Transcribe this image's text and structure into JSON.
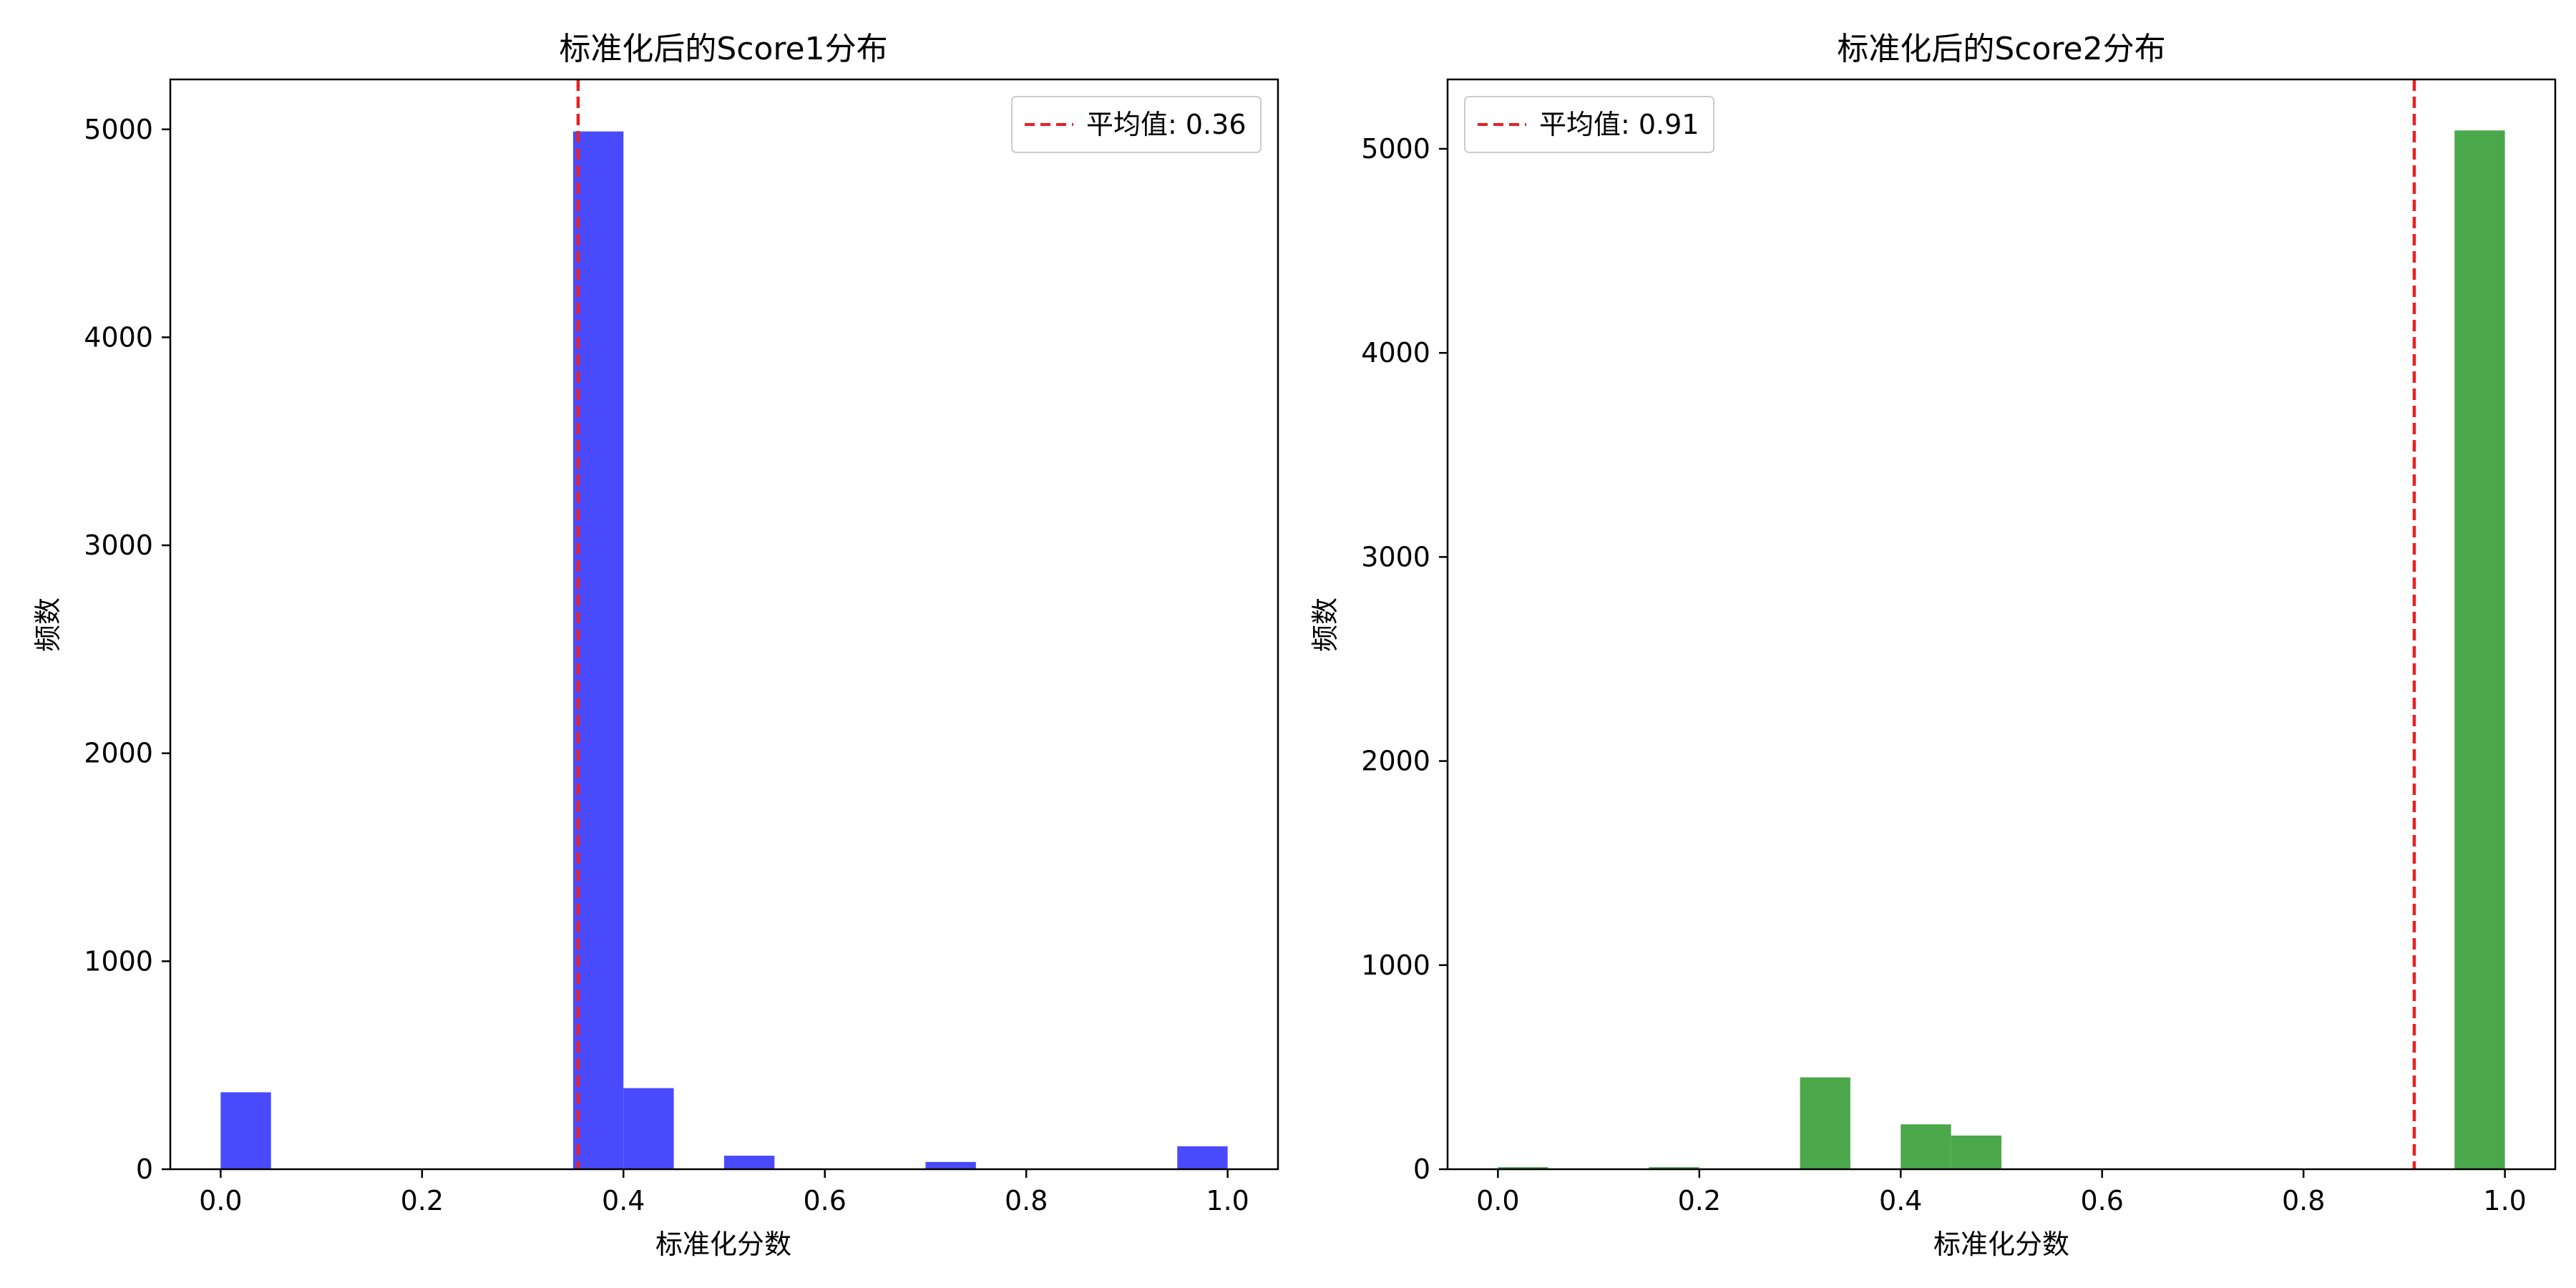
{
  "chart_data": [
    {
      "type": "bar",
      "title": "标准化后的Score1分布",
      "xlabel": "标准化分数",
      "ylabel": "频数",
      "xlim": [
        -0.05,
        1.05
      ],
      "ylim": [
        0,
        5240
      ],
      "xticks": [
        0.0,
        0.2,
        0.4,
        0.6,
        0.8,
        1.0
      ],
      "xtick_labels": [
        "0.0",
        "0.2",
        "0.4",
        "0.6",
        "0.8",
        "1.0"
      ],
      "yticks": [
        0,
        1000,
        2000,
        3000,
        4000,
        5000
      ],
      "ytick_labels": [
        "0",
        "1000",
        "2000",
        "3000",
        "4000",
        "5000"
      ],
      "bin_width": 0.05,
      "bins": [
        {
          "x0": 0.0,
          "value": 370
        },
        {
          "x0": 0.35,
          "value": 4990
        },
        {
          "x0": 0.4,
          "value": 390
        },
        {
          "x0": 0.5,
          "value": 65
        },
        {
          "x0": 0.7,
          "value": 35
        },
        {
          "x0": 0.95,
          "value": 110
        }
      ],
      "bar_color": "#4a4afd",
      "mean_line": {
        "value": 0.355,
        "color": "#e82121"
      },
      "legend": {
        "label": "平均值: 0.36",
        "position": "upper right"
      }
    },
    {
      "type": "bar",
      "title": "标准化后的Score2分布",
      "xlabel": "标准化分数",
      "ylabel": "频数",
      "xlim": [
        -0.05,
        1.05
      ],
      "ylim": [
        0,
        5340
      ],
      "xticks": [
        0.0,
        0.2,
        0.4,
        0.6,
        0.8,
        1.0
      ],
      "xtick_labels": [
        "0.0",
        "0.2",
        "0.4",
        "0.6",
        "0.8",
        "1.0"
      ],
      "yticks": [
        0,
        1000,
        2000,
        3000,
        4000,
        5000
      ],
      "ytick_labels": [
        "0",
        "1000",
        "2000",
        "3000",
        "4000",
        "5000"
      ],
      "bin_width": 0.05,
      "bins": [
        {
          "x0": 0.0,
          "value": 10
        },
        {
          "x0": 0.15,
          "value": 10
        },
        {
          "x0": 0.3,
          "value": 450
        },
        {
          "x0": 0.4,
          "value": 220
        },
        {
          "x0": 0.45,
          "value": 165
        },
        {
          "x0": 0.95,
          "value": 5090
        }
      ],
      "bar_color": "#4aa84a",
      "mean_line": {
        "value": 0.91,
        "color": "#e82121"
      },
      "legend": {
        "label": "平均值: 0.91",
        "position": "upper left"
      }
    }
  ]
}
